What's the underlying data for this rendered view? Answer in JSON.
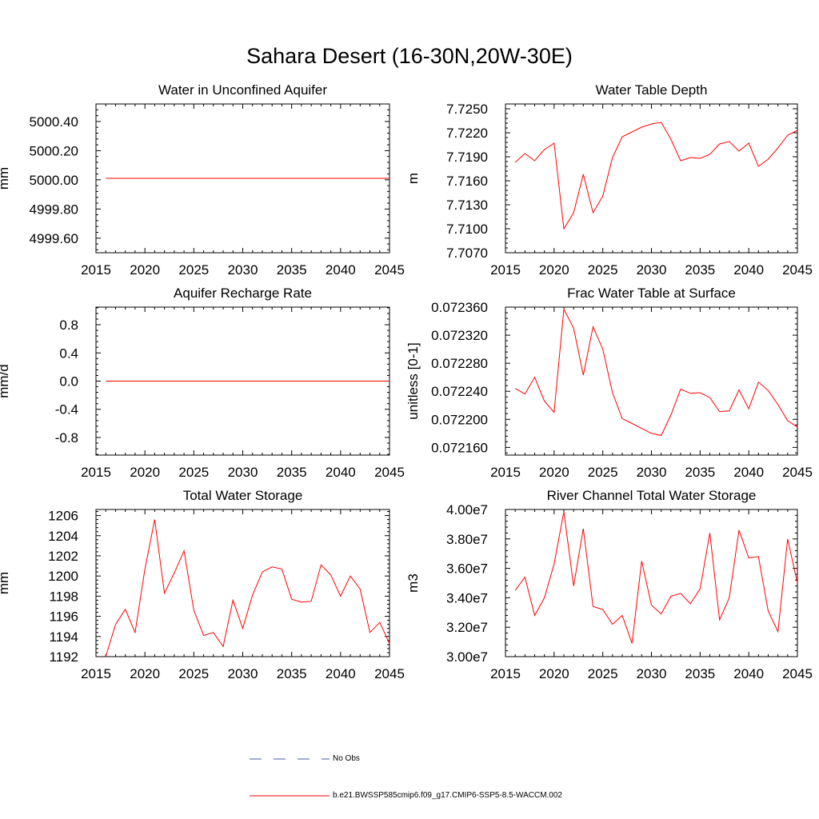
{
  "figure_title": "Sahara Desert (16-30N,20W-30E)",
  "line_color": "#ff0000",
  "obs_line_color": "#4a5aa8",
  "legend": [
    {
      "label": "No Obs",
      "style": "dashed",
      "color": "#4a5aa8"
    },
    {
      "label": "b.e21.BWSSP585cmip6.f09_g17.CMIP6-SSP5-8.5-WACCM.002",
      "style": "solid",
      "color": "#ff0000"
    }
  ],
  "chart_data": [
    {
      "type": "line",
      "title": "Water in Unconfined Aquifer",
      "ylabel": "mm",
      "xlim": [
        2015,
        2045
      ],
      "ylim": [
        4999.5,
        5000.52
      ],
      "xticks": [
        2015,
        2020,
        2025,
        2030,
        2035,
        2040,
        2045
      ],
      "yticks": [
        4999.6,
        4999.8,
        5000.0,
        5000.2,
        5000.4
      ],
      "ytick_labels": [
        "4999.60",
        "4999.80",
        "5000.00",
        "5000.20",
        "5000.40"
      ],
      "x": [
        2016,
        2017,
        2018,
        2019,
        2020,
        2021,
        2022,
        2023,
        2024,
        2025,
        2026,
        2027,
        2028,
        2029,
        2030,
        2031,
        2032,
        2033,
        2034,
        2035,
        2036,
        2037,
        2038,
        2039,
        2040,
        2041,
        2042,
        2043,
        2044,
        2045
      ],
      "series": [
        {
          "values": [
            5000.01,
            5000.01,
            5000.01,
            5000.01,
            5000.01,
            5000.01,
            5000.01,
            5000.01,
            5000.01,
            5000.01,
            5000.01,
            5000.01,
            5000.01,
            5000.01,
            5000.01,
            5000.01,
            5000.01,
            5000.01,
            5000.01,
            5000.01,
            5000.01,
            5000.01,
            5000.01,
            5000.01,
            5000.01,
            5000.01,
            5000.01,
            5000.01,
            5000.01,
            5000.01
          ]
        }
      ]
    },
    {
      "type": "line",
      "title": "Water Table Depth",
      "ylabel": "m",
      "xlim": [
        2015,
        2045
      ],
      "ylim": [
        7.707,
        7.7256
      ],
      "xticks": [
        2015,
        2020,
        2025,
        2030,
        2035,
        2040,
        2045
      ],
      "yticks": [
        7.707,
        7.71,
        7.713,
        7.716,
        7.719,
        7.722,
        7.725
      ],
      "ytick_labels": [
        "7.7070",
        "7.7100",
        "7.7130",
        "7.7160",
        "7.7190",
        "7.7220",
        "7.7250"
      ],
      "x": [
        2016,
        2017,
        2018,
        2019,
        2020,
        2021,
        2022,
        2023,
        2024,
        2025,
        2026,
        2027,
        2028,
        2029,
        2030,
        2031,
        2032,
        2033,
        2034,
        2035,
        2036,
        2037,
        2038,
        2039,
        2040,
        2041,
        2042,
        2043,
        2044,
        2045
      ],
      "series": [
        {
          "values": [
            7.7183,
            7.7194,
            7.7185,
            7.7199,
            7.7207,
            7.71,
            7.712,
            7.7168,
            7.712,
            7.7141,
            7.7189,
            7.7215,
            7.7221,
            7.7227,
            7.7231,
            7.7233,
            7.7212,
            7.7185,
            7.7189,
            7.7188,
            7.7193,
            7.7206,
            7.7209,
            7.7197,
            7.7207,
            7.7178,
            7.7187,
            7.7201,
            7.7217,
            7.7223
          ]
        }
      ]
    },
    {
      "type": "line",
      "title": "Aquifer Recharge Rate",
      "ylabel": "mm/d",
      "xlim": [
        2015,
        2045
      ],
      "ylim": [
        -1.05,
        1.05
      ],
      "xticks": [
        2015,
        2020,
        2025,
        2030,
        2035,
        2040,
        2045
      ],
      "yticks": [
        -0.8,
        -0.4,
        0.0,
        0.4,
        0.8
      ],
      "ytick_labels": [
        "-0.8",
        "-0.4",
        "0.0",
        "0.4",
        "0.8"
      ],
      "x": [
        2016,
        2017,
        2018,
        2019,
        2020,
        2021,
        2022,
        2023,
        2024,
        2025,
        2026,
        2027,
        2028,
        2029,
        2030,
        2031,
        2032,
        2033,
        2034,
        2035,
        2036,
        2037,
        2038,
        2039,
        2040,
        2041,
        2042,
        2043,
        2044,
        2045
      ],
      "series": [
        {
          "values": [
            0,
            0,
            0,
            0,
            0,
            0,
            0,
            0,
            0,
            0,
            0,
            0,
            0,
            0,
            0,
            0,
            0,
            0,
            0,
            0,
            0,
            0,
            0,
            0,
            0,
            0,
            0,
            0,
            0,
            0
          ]
        }
      ]
    },
    {
      "type": "line",
      "title": "Frac Water Table at Surface",
      "ylabel": "unitless [0-1]",
      "xlim": [
        2015,
        2045
      ],
      "ylim": [
        0.072149,
        0.07236
      ],
      "xticks": [
        2015,
        2020,
        2025,
        2030,
        2035,
        2040,
        2045
      ],
      "yticks": [
        0.07216,
        0.0722,
        0.07224,
        0.07228,
        0.07232,
        0.07236
      ],
      "ytick_labels": [
        "0.072160",
        "0.072200",
        "0.072240",
        "0.072280",
        "0.072320",
        "0.072360"
      ],
      "x": [
        2016,
        2017,
        2018,
        2019,
        2020,
        2021,
        2022,
        2023,
        2024,
        2025,
        2026,
        2027,
        2028,
        2029,
        2030,
        2031,
        2032,
        2033,
        2034,
        2035,
        2036,
        2037,
        2038,
        2039,
        2040,
        2041,
        2042,
        2043,
        2044,
        2045
      ],
      "series": [
        {
          "values": [
            0.072244,
            0.072236,
            0.07226,
            0.072226,
            0.07221,
            0.072357,
            0.07233,
            0.072263,
            0.072332,
            0.0723,
            0.072238,
            0.072201,
            0.072194,
            0.072187,
            0.07218,
            0.072177,
            0.072206,
            0.072243,
            0.072237,
            0.072238,
            0.072231,
            0.072211,
            0.072212,
            0.072242,
            0.072215,
            0.072253,
            0.072241,
            0.072221,
            0.072198,
            0.072189
          ]
        }
      ]
    },
    {
      "type": "line",
      "title": "Total Water Storage",
      "ylabel": "mm",
      "xlim": [
        2015,
        2045
      ],
      "ylim": [
        1192,
        1206.6
      ],
      "xticks": [
        2015,
        2020,
        2025,
        2030,
        2035,
        2040,
        2045
      ],
      "yticks": [
        1192,
        1194,
        1196,
        1198,
        1200,
        1202,
        1204,
        1206
      ],
      "ytick_labels": [
        "1192",
        "1194",
        "1196",
        "1198",
        "1200",
        "1202",
        "1204",
        "1206"
      ],
      "x": [
        2016,
        2017,
        2018,
        2019,
        2020,
        2021,
        2022,
        2023,
        2024,
        2025,
        2026,
        2027,
        2028,
        2029,
        2030,
        2031,
        2032,
        2033,
        2034,
        2035,
        2036,
        2037,
        2038,
        2039,
        2040,
        2041,
        2042,
        2043,
        2044,
        2045
      ],
      "series": [
        {
          "values": [
            1192.0,
            1195.2,
            1196.7,
            1194.4,
            1200.7,
            1205.6,
            1198.3,
            1200.3,
            1202.5,
            1196.6,
            1194.1,
            1194.4,
            1193.0,
            1197.6,
            1194.8,
            1198.1,
            1200.4,
            1200.9,
            1200.7,
            1197.7,
            1197.4,
            1197.5,
            1201.1,
            1200.1,
            1198.0,
            1200.0,
            1198.7,
            1194.4,
            1195.4,
            1193.3
          ]
        }
      ]
    },
    {
      "type": "line",
      "title": "River Channel Total Water Storage",
      "ylabel": "m3",
      "xlim": [
        2015,
        2045
      ],
      "ylim": [
        30000000,
        40000000
      ],
      "xticks": [
        2015,
        2020,
        2025,
        2030,
        2035,
        2040,
        2045
      ],
      "yticks": [
        30000000,
        32000000,
        34000000,
        36000000,
        38000000,
        40000000
      ],
      "ytick_labels": [
        "3.00e7",
        "3.20e7",
        "3.40e7",
        "3.60e7",
        "3.80e7",
        "4.00e7"
      ],
      "x": [
        2016,
        2017,
        2018,
        2019,
        2020,
        2021,
        2022,
        2023,
        2024,
        2025,
        2026,
        2027,
        2028,
        2029,
        2030,
        2031,
        2032,
        2033,
        2034,
        2035,
        2036,
        2037,
        2038,
        2039,
        2040,
        2041,
        2042,
        2043,
        2044,
        2045
      ],
      "series": [
        {
          "values": [
            34500000,
            35400000,
            32800000,
            34000000,
            36300000,
            39850000,
            34800000,
            38700000,
            33400000,
            33200000,
            32200000,
            32800000,
            30900000,
            36500000,
            33500000,
            32900000,
            34100000,
            34300000,
            33600000,
            34600000,
            38400000,
            32500000,
            34000000,
            38600000,
            36700000,
            36800000,
            33100000,
            31700000,
            38000000,
            35000000
          ]
        }
      ]
    }
  ]
}
